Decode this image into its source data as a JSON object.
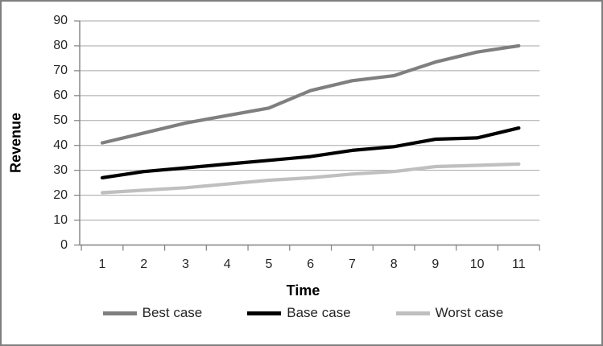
{
  "chart_data": {
    "type": "line",
    "title": "",
    "xlabel": "Time",
    "ylabel": "Revenue",
    "x": [
      1,
      2,
      3,
      4,
      5,
      6,
      7,
      8,
      9,
      10,
      11
    ],
    "xticks": [
      "1",
      "2",
      "3",
      "4",
      "5",
      "6",
      "7",
      "8",
      "9",
      "10",
      "11"
    ],
    "yticks": [
      0,
      10,
      20,
      30,
      40,
      50,
      60,
      70,
      80,
      90
    ],
    "ylim": [
      0,
      90
    ],
    "grid": true,
    "legend_position": "bottom",
    "series": [
      {
        "name": "Best case",
        "color": "#7f7f7f",
        "values": [
          41,
          45,
          49,
          52,
          55,
          62,
          66,
          68,
          73.5,
          77.5,
          80
        ]
      },
      {
        "name": "Base case",
        "color": "#000000",
        "values": [
          27,
          29.5,
          31,
          32.5,
          34,
          35.5,
          38,
          39.5,
          42.5,
          43,
          47
        ]
      },
      {
        "name": "Worst case",
        "color": "#bfbfbf",
        "values": [
          21,
          22,
          23,
          24.5,
          26,
          27,
          28.5,
          29.5,
          31.5,
          32,
          32.5
        ]
      }
    ]
  },
  "colors": {
    "gridline": "#a6a6a6",
    "axis": "#808080",
    "frame_border": "#7f7f7f",
    "tick_text": "#262626",
    "background": "#ffffff"
  }
}
